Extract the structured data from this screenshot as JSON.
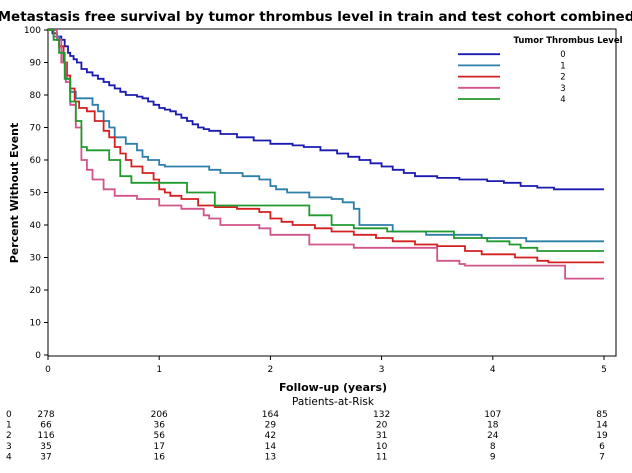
{
  "chart_data": {
    "type": "line",
    "step": true,
    "title": "Metastasis free survival by tumor thrombus level in train and test cohort combined",
    "xlabel": "Follow-up (years)",
    "ylabel": "Percent Without Event",
    "xlim": [
      0,
      5
    ],
    "ylim": [
      0,
      100
    ],
    "xticks": [
      "0",
      "1",
      "2",
      "3",
      "4",
      "5"
    ],
    "yticks": [
      "0",
      "10",
      "20",
      "30",
      "40",
      "50",
      "60",
      "70",
      "80",
      "90",
      "100"
    ],
    "legend": {
      "title": "Tumor Thrombus Level",
      "position": "top-right"
    },
    "series": [
      {
        "name": "0",
        "color": "#1a1ab0",
        "points": [
          [
            0,
            100
          ],
          [
            0.04,
            99
          ],
          [
            0.08,
            98
          ],
          [
            0.12,
            97
          ],
          [
            0.15,
            95
          ],
          [
            0.18,
            93
          ],
          [
            0.2,
            92
          ],
          [
            0.23,
            91
          ],
          [
            0.26,
            90
          ],
          [
            0.3,
            88
          ],
          [
            0.35,
            87
          ],
          [
            0.4,
            86
          ],
          [
            0.45,
            85
          ],
          [
            0.5,
            84
          ],
          [
            0.55,
            83
          ],
          [
            0.6,
            82
          ],
          [
            0.65,
            81
          ],
          [
            0.7,
            80
          ],
          [
            0.8,
            79.5
          ],
          [
            0.85,
            79
          ],
          [
            0.9,
            78
          ],
          [
            0.95,
            77
          ],
          [
            1.0,
            76
          ],
          [
            1.05,
            75.5
          ],
          [
            1.1,
            75
          ],
          [
            1.15,
            74
          ],
          [
            1.2,
            73
          ],
          [
            1.25,
            72
          ],
          [
            1.3,
            71
          ],
          [
            1.35,
            70
          ],
          [
            1.4,
            69.5
          ],
          [
            1.45,
            69
          ],
          [
            1.55,
            68
          ],
          [
            1.7,
            67
          ],
          [
            1.85,
            66
          ],
          [
            2.0,
            65
          ],
          [
            2.2,
            64.5
          ],
          [
            2.3,
            64
          ],
          [
            2.45,
            63
          ],
          [
            2.6,
            62
          ],
          [
            2.7,
            61
          ],
          [
            2.8,
            60
          ],
          [
            2.9,
            59
          ],
          [
            3.0,
            58
          ],
          [
            3.1,
            57
          ],
          [
            3.2,
            56
          ],
          [
            3.3,
            55
          ],
          [
            3.5,
            54.5
          ],
          [
            3.7,
            54
          ],
          [
            3.95,
            53.5
          ],
          [
            4.1,
            53
          ],
          [
            4.25,
            52
          ],
          [
            4.4,
            51.5
          ],
          [
            4.55,
            51
          ],
          [
            5.0,
            51
          ]
        ]
      },
      {
        "name": "1",
        "color": "#2e7fa8",
        "points": [
          [
            0,
            100
          ],
          [
            0.05,
            98
          ],
          [
            0.1,
            95
          ],
          [
            0.14,
            90
          ],
          [
            0.17,
            85
          ],
          [
            0.2,
            81
          ],
          [
            0.25,
            79
          ],
          [
            0.4,
            77
          ],
          [
            0.45,
            75
          ],
          [
            0.5,
            72
          ],
          [
            0.55,
            70
          ],
          [
            0.6,
            67
          ],
          [
            0.7,
            65
          ],
          [
            0.8,
            63
          ],
          [
            0.85,
            61
          ],
          [
            0.9,
            60
          ],
          [
            1.0,
            58.5
          ],
          [
            1.05,
            58
          ],
          [
            1.45,
            57
          ],
          [
            1.55,
            56
          ],
          [
            1.75,
            55
          ],
          [
            1.9,
            54
          ],
          [
            2.0,
            52
          ],
          [
            2.05,
            51
          ],
          [
            2.15,
            50
          ],
          [
            2.35,
            48.5
          ],
          [
            2.55,
            48
          ],
          [
            2.65,
            47
          ],
          [
            2.75,
            45
          ],
          [
            2.8,
            40
          ],
          [
            3.1,
            38
          ],
          [
            3.4,
            37
          ],
          [
            3.9,
            36
          ],
          [
            4.3,
            35
          ],
          [
            5.0,
            35
          ]
        ]
      },
      {
        "name": "2",
        "color": "#d42020",
        "points": [
          [
            0,
            100
          ],
          [
            0.05,
            99
          ],
          [
            0.08,
            97
          ],
          [
            0.1,
            95
          ],
          [
            0.14,
            90
          ],
          [
            0.17,
            86
          ],
          [
            0.2,
            82
          ],
          [
            0.24,
            78
          ],
          [
            0.28,
            76
          ],
          [
            0.35,
            75
          ],
          [
            0.42,
            72
          ],
          [
            0.5,
            69
          ],
          [
            0.55,
            67
          ],
          [
            0.6,
            64
          ],
          [
            0.65,
            62
          ],
          [
            0.7,
            60
          ],
          [
            0.75,
            58
          ],
          [
            0.85,
            56
          ],
          [
            0.95,
            54
          ],
          [
            1.0,
            51
          ],
          [
            1.05,
            50
          ],
          [
            1.1,
            49
          ],
          [
            1.2,
            48
          ],
          [
            1.35,
            46
          ],
          [
            1.5,
            45.5
          ],
          [
            1.7,
            45
          ],
          [
            1.9,
            44
          ],
          [
            2.0,
            42
          ],
          [
            2.1,
            41
          ],
          [
            2.2,
            40
          ],
          [
            2.4,
            39
          ],
          [
            2.55,
            38
          ],
          [
            2.75,
            37
          ],
          [
            2.95,
            36
          ],
          [
            3.1,
            35
          ],
          [
            3.3,
            34
          ],
          [
            3.5,
            33.5
          ],
          [
            3.75,
            32
          ],
          [
            3.9,
            31
          ],
          [
            4.2,
            30
          ],
          [
            4.4,
            29
          ],
          [
            4.5,
            28.5
          ],
          [
            5.0,
            28.5
          ]
        ]
      },
      {
        "name": "3",
        "color": "#d1548a",
        "points": [
          [
            0,
            100
          ],
          [
            0.08,
            97
          ],
          [
            0.12,
            90
          ],
          [
            0.16,
            84
          ],
          [
            0.2,
            77
          ],
          [
            0.25,
            70
          ],
          [
            0.3,
            60
          ],
          [
            0.35,
            57
          ],
          [
            0.4,
            54
          ],
          [
            0.5,
            51
          ],
          [
            0.6,
            49
          ],
          [
            0.8,
            48
          ],
          [
            1.0,
            46
          ],
          [
            1.2,
            45
          ],
          [
            1.4,
            43
          ],
          [
            1.45,
            42
          ],
          [
            1.55,
            40
          ],
          [
            1.9,
            39
          ],
          [
            2.0,
            37
          ],
          [
            2.35,
            34
          ],
          [
            2.75,
            33
          ],
          [
            3.5,
            29
          ],
          [
            3.7,
            28
          ],
          [
            3.75,
            27.5
          ],
          [
            4.65,
            23.5
          ],
          [
            5.0,
            23.5
          ]
        ]
      },
      {
        "name": "4",
        "color": "#1f9a2e",
        "points": [
          [
            0,
            100
          ],
          [
            0.05,
            97
          ],
          [
            0.1,
            93
          ],
          [
            0.15,
            85
          ],
          [
            0.2,
            78
          ],
          [
            0.25,
            72
          ],
          [
            0.3,
            64
          ],
          [
            0.35,
            63
          ],
          [
            0.55,
            60
          ],
          [
            0.65,
            55
          ],
          [
            0.75,
            53
          ],
          [
            1.25,
            50
          ],
          [
            1.5,
            46
          ],
          [
            2.35,
            43
          ],
          [
            2.55,
            40
          ],
          [
            2.75,
            39
          ],
          [
            3.05,
            38
          ],
          [
            3.65,
            36
          ],
          [
            3.95,
            35
          ],
          [
            4.15,
            34
          ],
          [
            4.25,
            33
          ],
          [
            4.4,
            32
          ],
          [
            5.0,
            32
          ]
        ]
      }
    ]
  },
  "at_risk": {
    "title": "Patients-at-Risk",
    "times": [
      0,
      1,
      2,
      3,
      4,
      5
    ],
    "rows": [
      {
        "label": "0",
        "values": [
          "278",
          "206",
          "164",
          "132",
          "107",
          "85"
        ]
      },
      {
        "label": "1",
        "values": [
          "66",
          "36",
          "29",
          "20",
          "18",
          "14"
        ]
      },
      {
        "label": "2",
        "values": [
          "116",
          "56",
          "42",
          "31",
          "24",
          "19"
        ]
      },
      {
        "label": "3",
        "values": [
          "35",
          "17",
          "14",
          "10",
          "8",
          "6"
        ]
      },
      {
        "label": "4",
        "values": [
          "37",
          "16",
          "13",
          "11",
          "9",
          "7"
        ]
      }
    ]
  }
}
